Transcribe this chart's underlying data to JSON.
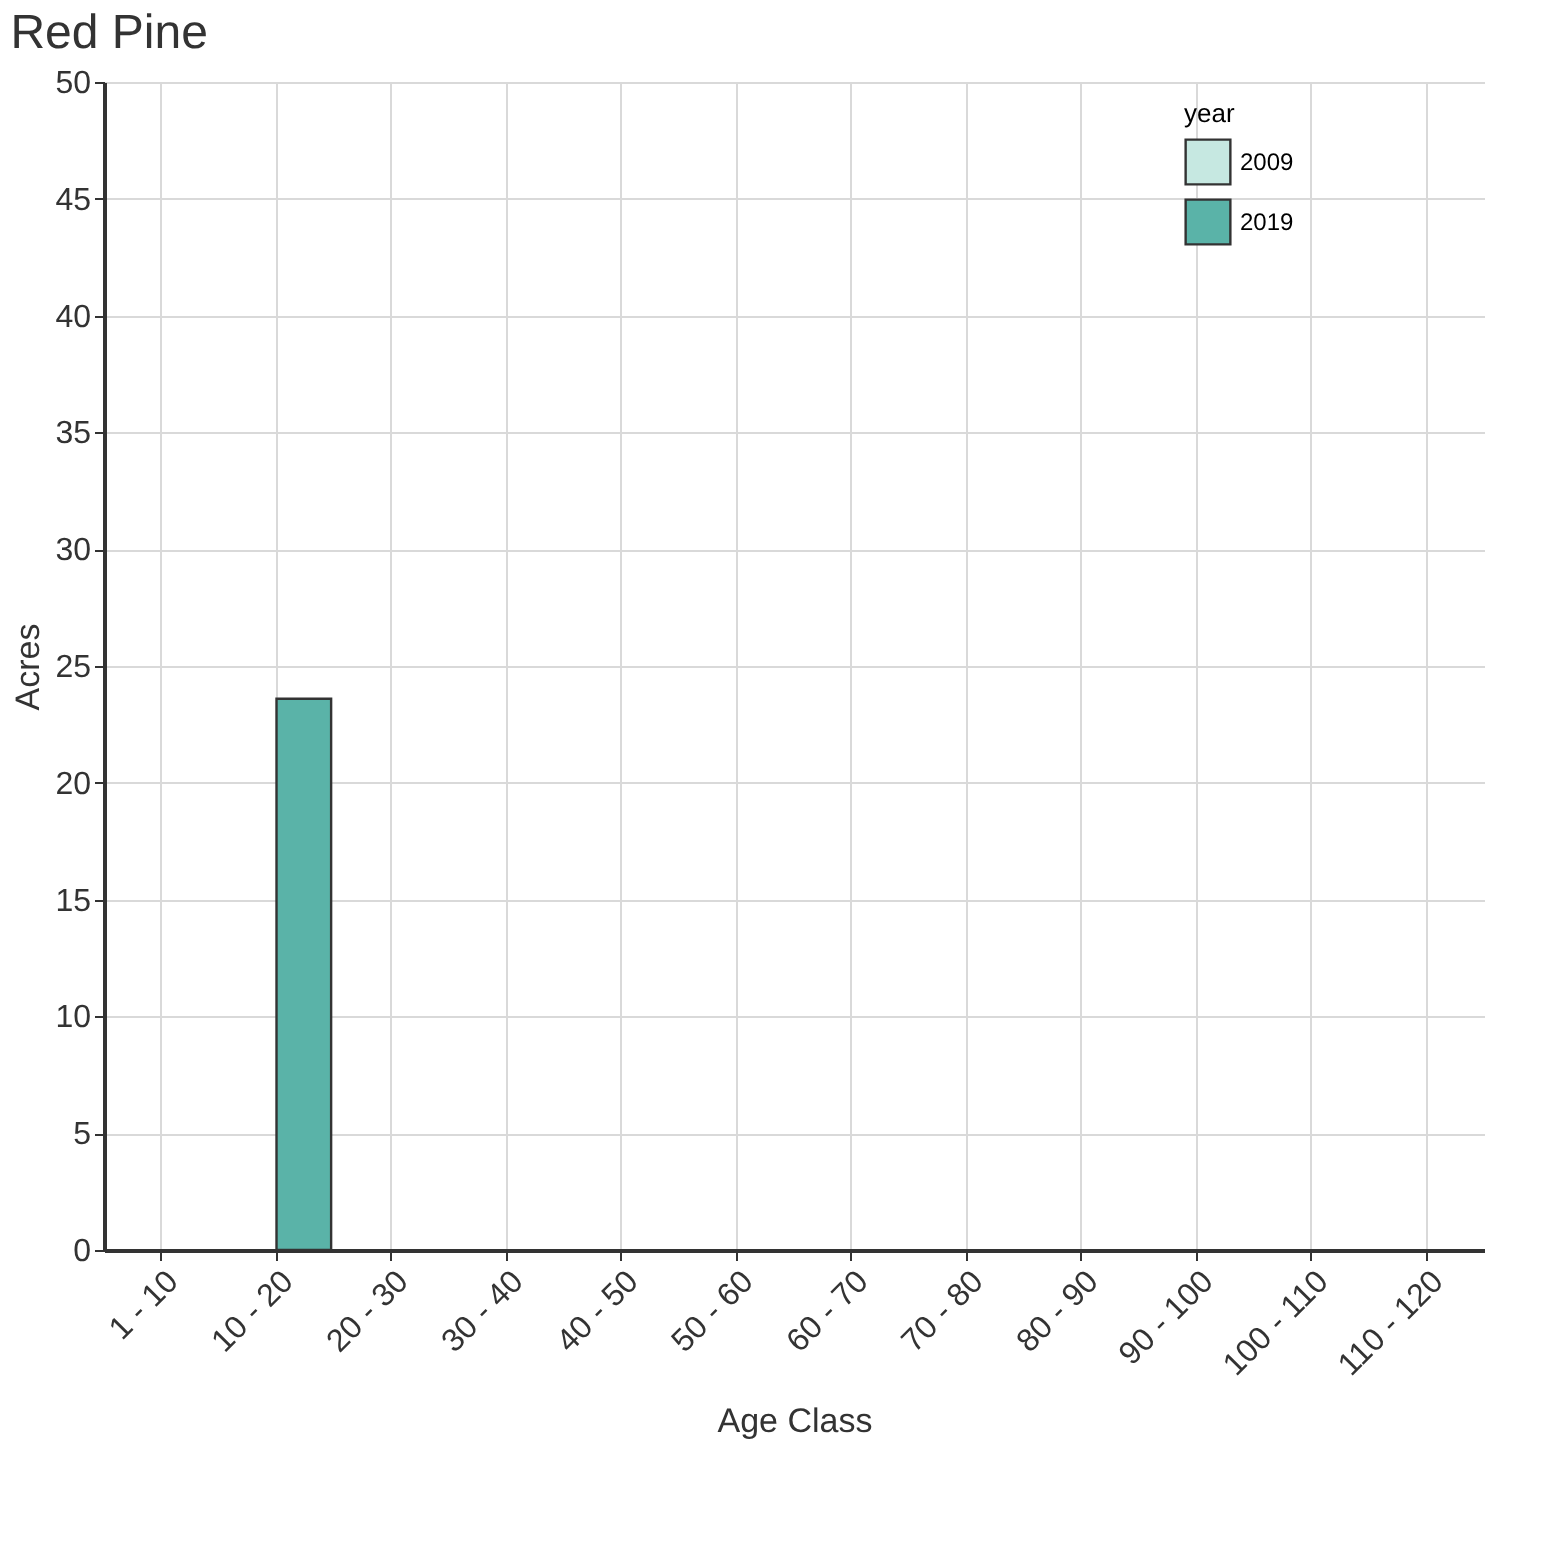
{
  "chart_data": {
    "type": "bar",
    "title": "Red Pine",
    "xlabel": "Age Class",
    "ylabel": "Acres",
    "legend_title": "year",
    "categories": [
      "1 - 10",
      "10 - 20",
      "20 - 30",
      "30 - 40",
      "40 - 50",
      "50 - 60",
      "60 - 70",
      "70 - 80",
      "80 - 90",
      "90 - 100",
      "100 - 110",
      "110 - 120"
    ],
    "series": [
      {
        "name": "2009",
        "color": "#c6e8e1",
        "values": [
          null,
          null,
          null,
          null,
          null,
          null,
          null,
          null,
          null,
          null,
          null,
          null
        ]
      },
      {
        "name": "2019",
        "color": "#5ab3a8",
        "values": [
          null,
          23.6,
          null,
          null,
          null,
          null,
          null,
          null,
          null,
          null,
          null,
          null
        ]
      }
    ],
    "ylim": [
      0,
      50
    ],
    "yticks": [
      0,
      5,
      10,
      15,
      20,
      25,
      30,
      35,
      40,
      45,
      50
    ],
    "grid": true,
    "legend": "top right"
  }
}
